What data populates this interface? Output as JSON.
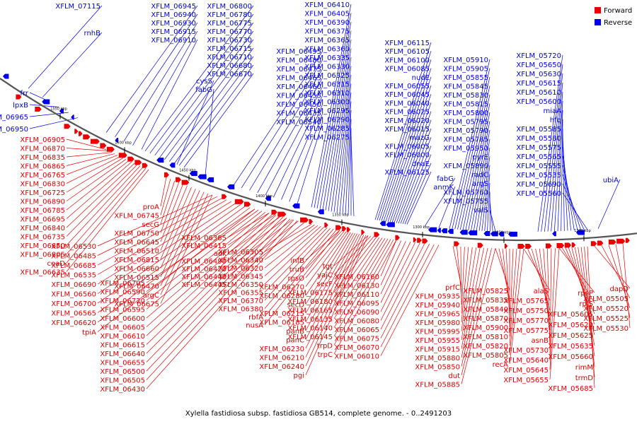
{
  "caption": "Xylella fastidiosa subsp. fastidiosa GB514, complete genome. - 0..2491203",
  "legend": [
    {
      "label": "Forward",
      "color": "#ee0000"
    },
    {
      "label": "Reverse",
      "color": "#0000ee"
    }
  ],
  "backbone_color": "#555555",
  "kbp_ticks": [
    "1550 kbp",
    "1500 kbp",
    "1450 kbp",
    "1400 kbp",
    "1350 kbp",
    "1300 kbp",
    "1250 kbp",
    "1200 kbp"
  ],
  "reverse_labels": [
    "XFLM_07115",
    "rnhB",
    "XFLM_06945",
    "XFLM_06940",
    "XFLM_06930",
    "XFLM_06915",
    "XFLM_06910",
    "XFLM_06800",
    "XFLM_06780",
    "XFLM_06775",
    "XFLM_06770",
    "XFLM_06730",
    "XFLM_06715",
    "XFLM_06710",
    "XFLM_06680",
    "XFLM_06670",
    "cysS",
    "fabG",
    "frr",
    "lpxB",
    "XFLM_06965",
    "XFLM_06950",
    "XFLM_06410",
    "XFLM_06405",
    "XFLM_06390",
    "XFLM_06375",
    "XFLM_06365",
    "XFLM_06360",
    "XFLM_06335",
    "XFLM_06330",
    "XFLM_06325",
    "XFLM_06315",
    "XFLM_06310",
    "XFLM_06300",
    "XFLM_06295",
    "XFLM_06290",
    "XFLM_06285",
    "XFLM_06275",
    "XFLM_06495",
    "XFLM_06480",
    "XFLM_06475",
    "XFLM_06465",
    "XFLM_06460",
    "XFLM_06455",
    "XFLM_06450",
    "XFLM_06435",
    "XFLM_06540",
    "XFLM_06115",
    "XFLM_06105",
    "XFLM_06100",
    "XFLM_06085",
    "nudE",
    "XFLM_06055",
    "XFLM_06045",
    "XFLM_06040",
    "XFLM_06025",
    "XFLM_06020",
    "XFLM_06015",
    "mazG",
    "XFLM_06005",
    "XFLM_06000",
    "dnaE",
    "XFLM_06125",
    "fabG",
    "anmK",
    "XFLM_05910",
    "XFLM_05905",
    "XFLM_05855",
    "XFLM_05845",
    "XFLM_05830",
    "XFLM_05815",
    "XFLM_05800",
    "XFLM_05795",
    "XFLM_05790",
    "XFLM_05785",
    "XFLM_05950",
    "pyrE",
    "XFLM_05890",
    "radC",
    "argS",
    "XFLM_05760",
    "XFLM_05755",
    "valS",
    "XFLM_05720",
    "XFLM_05650",
    "XFLM_05630",
    "XFLM_05615",
    "XFLM_05610",
    "XFLM_05600",
    "miaA",
    "hfq",
    "XFLM_05585",
    "XFLM_05580",
    "XFLM_05575",
    "XFLM_05565",
    "XFLM_05555",
    "XFLM_05535",
    "XFLM_05690",
    "XFLM_05560",
    "ubiA"
  ],
  "forward_labels": [
    "XFLM_06905",
    "XFLM_06870",
    "XFLM_06835",
    "XFLM_06865",
    "XFLM_06765",
    "XFLM_06830",
    "XFLM_06725",
    "XFLM_06890",
    "XFLM_06785",
    "XFLM_06695",
    "XFLM_06840",
    "XFLM_06735",
    "XFLM_06650",
    "XFLM_06805",
    "coaD",
    "XFLM_06635",
    "proA",
    "XFLM_06745",
    "secG",
    "XFLM_06750",
    "XFLM_06645",
    "XFLM_06510",
    "XFLM_06815",
    "XFLM_06660",
    "XFLM_06515",
    "XFLM_06470",
    "argC",
    "XFLM_06675",
    "XFLM_06530",
    "XFLM_06485",
    "XFLM_06685",
    "XFLM_06535",
    "XFLM_06690",
    "XFLM_06560",
    "XFLM_06700",
    "XFLM_06565",
    "XFLM_06620",
    "tpiA",
    "XFLM_06705",
    "XFLM_06590",
    "XFLM_06720",
    "XFLM_06595",
    "XFLM_06600",
    "XFLM_06605",
    "XFLM_06610",
    "XFLM_06615",
    "XFLM_06640",
    "XFLM_06655",
    "XFLM_06500",
    "XFLM_06505",
    "XFLM_06430",
    "XFLM_06385",
    "XFLM_06415",
    "adk",
    "XFLM_06490",
    "XFLM_06420",
    "XFLM_06440",
    "XFLM_06445",
    "XFLM_06305",
    "XFLM_06340",
    "XFLM_06320",
    "XFLM_06345",
    "XFLM_06350",
    "XFLM_06355",
    "XFLM_06370",
    "XFLM_06380",
    "rbfA",
    "nusA",
    "infB",
    "truB",
    "rpsO",
    "XFLM_06270",
    "XFLM_06280",
    "secD",
    "XFLM_06215",
    "XFLM_06185",
    "panB",
    "panC",
    "XFLM_06230",
    "XFLM_06210",
    "XFLM_06240",
    "pgi",
    "tgt",
    "yajC",
    "secF",
    "XFLM_06175",
    "XFLM_06180",
    "XFLM_06165",
    "XFLM_06135",
    "XFLM_06140",
    "XFLM_06145",
    "trpD",
    "trpC",
    "XFLM_06160",
    "XFLM_06130",
    "XFLM_06110",
    "XFLM_06095",
    "XFLM_06090",
    "XFLM_06080",
    "XFLM_06065",
    "XFLM_06075",
    "XFLM_06070",
    "XFLM_06010",
    "prfC",
    "XFLM_05935",
    "XFLM_05940",
    "XFLM_05965",
    "XFLM_05980",
    "XFLM_05995",
    "XFLM_05955",
    "XFLM_05915",
    "XFLM_05880",
    "XFLM_05850",
    "dut",
    "XFLM_05885",
    "XFLM_05825",
    "XFLM_05835",
    "XFLM_05840",
    "XFLM_05870",
    "XFLM_05900",
    "XFLM_05810",
    "XFLM_05820",
    "XFLM_05805",
    "recA",
    "alaS",
    "XFLM_05765",
    "XFLM_05750",
    "XFLM_05770",
    "XFLM_05775",
    "asnB",
    "XFLM_05730",
    "XFLM_05640",
    "XFLM_05645",
    "XFLM_05655",
    "rpsP",
    "rplS",
    "XFLM_05605",
    "XFLM_05620",
    "XFLM_05625",
    "XFLM_05635",
    "XFLM_05660",
    "rimM",
    "trmD",
    "XFLM_05685",
    "dapD",
    "XFLM_05505",
    "XFLM_05520",
    "XFLM_05525",
    "XFLM_05530",
    "XFLM_05570"
  ]
}
